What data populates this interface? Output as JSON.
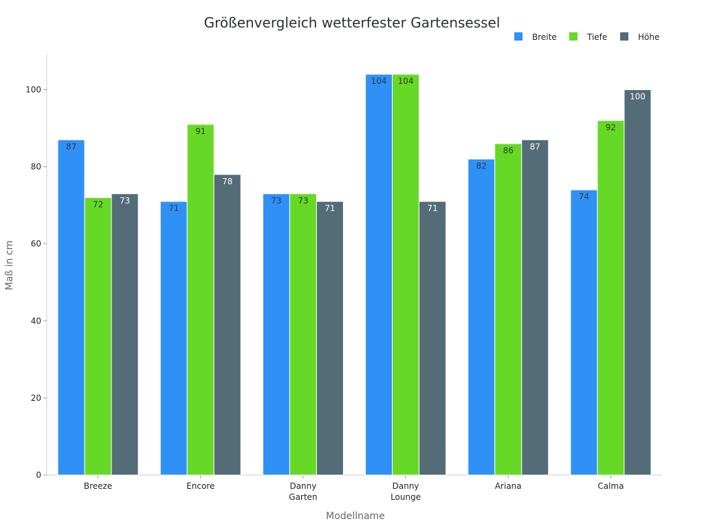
{
  "chart_data": {
    "type": "bar",
    "title": "Größenvergleich wetterfester Gartensessel",
    "xlabel": "Modellname",
    "ylabel": "Maß in cm",
    "categories": [
      [
        "Breeze"
      ],
      [
        "Encore"
      ],
      [
        "Danny",
        "Garten"
      ],
      [
        "Danny",
        "Lounge"
      ],
      [
        "Ariana"
      ],
      [
        "Calma"
      ]
    ],
    "series": [
      {
        "name": "Breite",
        "color": "#2f91f6",
        "label_color": "#2b3a4a",
        "values": [
          87,
          71,
          73,
          104,
          82,
          74
        ]
      },
      {
        "name": "Tiefe",
        "color": "#66d926",
        "label_color": "#2b3a1a",
        "values": [
          72,
          91,
          73,
          104,
          86,
          92
        ]
      },
      {
        "name": "Höhe",
        "color": "#546b78",
        "label_color": "#ffffff",
        "values": [
          73,
          78,
          71,
          71,
          87,
          100
        ]
      }
    ],
    "ylim": [
      0,
      109
    ],
    "yticks": [
      0,
      20,
      40,
      60,
      80,
      100
    ],
    "grid": false,
    "legend": "top-right"
  }
}
